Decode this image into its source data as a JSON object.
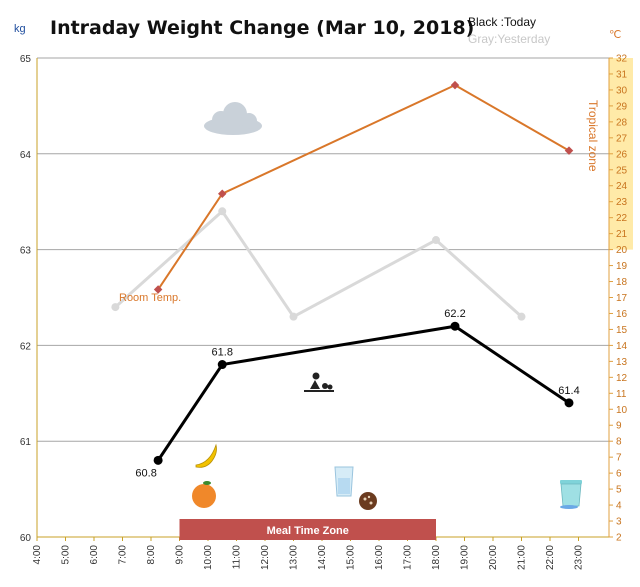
{
  "chart_data": {
    "type": "line",
    "title": "Intraday Weight Change (Mar 10, 2018)",
    "legend": {
      "black": "Black :Today",
      "gray": "Gray:Yesterday"
    },
    "y_unit_left": "kg",
    "y_unit_right": "℃",
    "ylim_left": [
      60,
      65
    ],
    "yticks_left": [
      "60",
      "61",
      "62",
      "63",
      "64",
      "65"
    ],
    "ylim_right": [
      2,
      32
    ],
    "xticks": [
      "4:00",
      "5:00",
      "6:00",
      "7:00",
      "8:00",
      "9:00",
      "10:00",
      "11:00",
      "12:00",
      "13:00",
      "14:00",
      "15:00",
      "16:00",
      "17:00",
      "18:00",
      "19:00",
      "20:00",
      "21:00",
      "22:00",
      "23:00"
    ],
    "series": [
      {
        "name": "Black :Today",
        "color": "#000000",
        "axis": "left",
        "x": [
          "08:15",
          "10:30",
          "18:40",
          "22:40"
        ],
        "y": [
          60.8,
          61.8,
          62.2,
          61.4
        ],
        "labels": [
          "60.8",
          "61.8",
          "62.2",
          "61.4"
        ]
      },
      {
        "name": "Gray:Yesterday",
        "color": "#d9d9d9",
        "axis": "left",
        "x": [
          "06:45",
          "10:30",
          "13:00",
          "18:00",
          "21:00"
        ],
        "y": [
          62.4,
          63.4,
          62.3,
          63.1,
          62.3
        ]
      },
      {
        "name": "Room Temp.",
        "color": "#d9772a",
        "axis": "right",
        "x": [
          "08:15",
          "10:30",
          "18:40",
          "22:40"
        ],
        "y": [
          17.5,
          23.5,
          30.3,
          26.2
        ]
      }
    ],
    "annotations": {
      "room_temp_label": "Room Temp.",
      "tropical_zone_label": "Tropical zone",
      "tropical_zone_range": [
        20,
        32
      ],
      "meal_time_zone_label": "Meal Time Zone",
      "meal_time_zone_range": [
        "09:00",
        "18:00"
      ]
    },
    "icons": [
      "cloud-icon",
      "banana-icon",
      "orange-fruit-icon",
      "water-glass-icon",
      "cookie-icon",
      "exercise-icon",
      "trash-bin-icon"
    ],
    "colors": {
      "today": "#000000",
      "yesterday": "#d9d9d9",
      "temperature": "#d9772a",
      "tropical_zone": "#ffe699",
      "meal_zone": "#c0504d",
      "grid": "#a6a6a6"
    }
  }
}
